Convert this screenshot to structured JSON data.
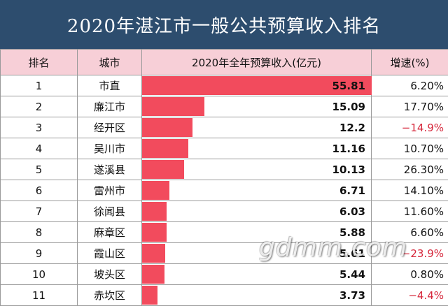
{
  "chart_data": {
    "type": "bar",
    "title": "2020年湛江市一般公共预算收入排名",
    "columns": {
      "rank": "排名",
      "city": "城市",
      "revenue": "2020年全年预算收入(亿元)",
      "growth": "增速(%)"
    },
    "xlim": [
      0,
      55.81
    ],
    "rows": [
      {
        "rank": "1",
        "city": "市直",
        "value": 55.81,
        "value_label": "55.81",
        "growth": "6.20%",
        "negative": false
      },
      {
        "rank": "2",
        "city": "廉江市",
        "value": 15.09,
        "value_label": "15.09",
        "growth": "17.70%",
        "negative": false
      },
      {
        "rank": "3",
        "city": "经开区",
        "value": 12.2,
        "value_label": "12.2",
        "growth": "−14.9%",
        "negative": true
      },
      {
        "rank": "4",
        "city": "吴川市",
        "value": 11.16,
        "value_label": "11.16",
        "growth": "10.70%",
        "negative": false
      },
      {
        "rank": "5",
        "city": "遂溪县",
        "value": 10.13,
        "value_label": "10.13",
        "growth": "26.30%",
        "negative": false
      },
      {
        "rank": "6",
        "city": "雷州市",
        "value": 6.71,
        "value_label": "6.71",
        "growth": "14.10%",
        "negative": false
      },
      {
        "rank": "7",
        "city": "徐闻县",
        "value": 6.03,
        "value_label": "6.03",
        "growth": "11.60%",
        "negative": false
      },
      {
        "rank": "8",
        "city": "麻章区",
        "value": 5.88,
        "value_label": "5.88",
        "growth": "6.60%",
        "negative": false
      },
      {
        "rank": "9",
        "city": "霞山区",
        "value": 5.61,
        "value_label": "5.61",
        "growth": "−23.9%",
        "negative": true
      },
      {
        "rank": "10",
        "city": "坡头区",
        "value": 5.44,
        "value_label": "5.44",
        "growth": "0.80%",
        "negative": false
      },
      {
        "rank": "11",
        "city": "赤坎区",
        "value": 3.73,
        "value_label": "3.73",
        "growth": "−4.4%",
        "negative": true
      }
    ],
    "colors": {
      "bar": "#f24b5d",
      "header_bg": "#f7cfd7",
      "title_bg": "#2d4d6e",
      "negative": "#d6283c"
    }
  },
  "watermark": "gdmm.com"
}
